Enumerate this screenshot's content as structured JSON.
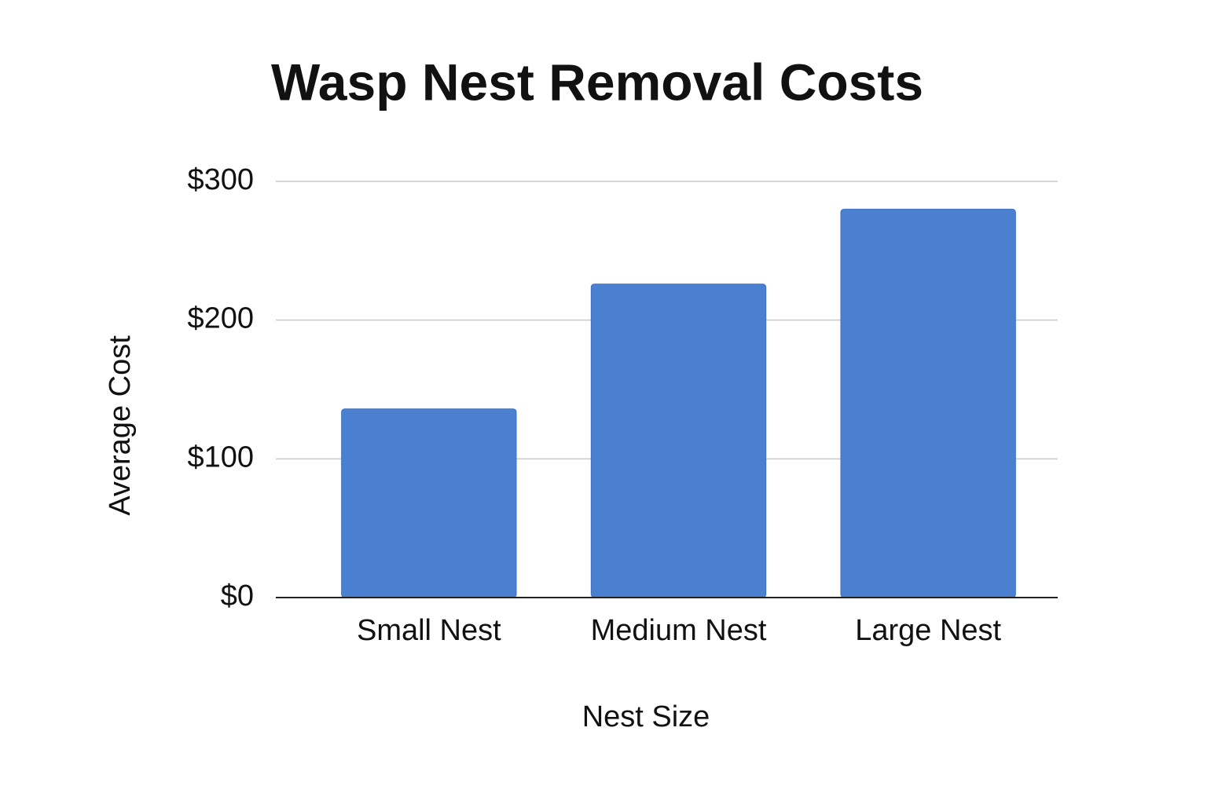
{
  "chart_data": {
    "type": "bar",
    "title": "Wasp Nest Removal Costs",
    "x_label": "Nest Size",
    "y_label": "Average Cost",
    "categories": [
      "Small Nest",
      "Medium Nest",
      "Large Nest"
    ],
    "values": [
      136,
      226,
      280
    ],
    "color": "#4a80cf",
    "ylim": [
      0,
      300
    ],
    "yticks": [
      {
        "value": 0,
        "label": "$0"
      },
      {
        "value": 100,
        "label": "$100"
      },
      {
        "value": 200,
        "label": "$200"
      },
      {
        "value": 300,
        "label": "$300"
      }
    ],
    "grid": true
  }
}
